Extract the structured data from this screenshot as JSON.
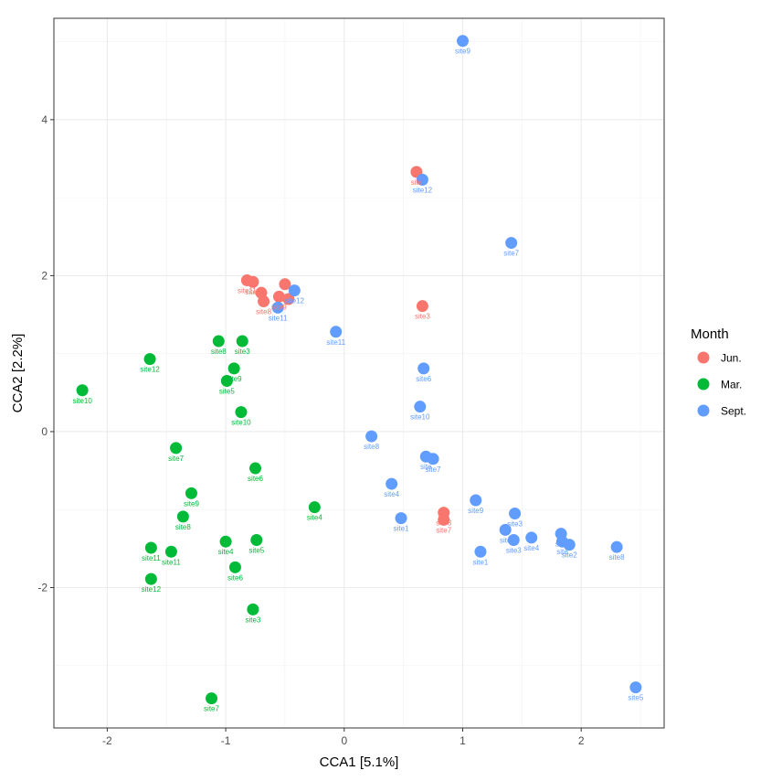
{
  "chart_data": {
    "type": "scatter",
    "xlabel": "CCA1   [5.1%]",
    "ylabel": "CCA2   [2.2%]",
    "xlim": [
      -2.45,
      2.7
    ],
    "ylim": [
      -3.8,
      5.3
    ],
    "x_ticks": [
      -2,
      -1,
      0,
      1,
      2
    ],
    "y_ticks": [
      -2,
      0,
      2,
      4
    ],
    "grid": true,
    "legend": {
      "title": "Month",
      "placement": "right",
      "entries": [
        {
          "name": "Jun.",
          "color": "#F8766D"
        },
        {
          "name": "Mar.",
          "color": "#00BA38"
        },
        {
          "name": "Sept.",
          "color": "#619CFF"
        }
      ]
    },
    "series": [
      {
        "name": "Jun.",
        "color": "#F8766D",
        "points": [
          {
            "x": 0.61,
            "y": 3.33,
            "label": "site"
          },
          {
            "x": 0.66,
            "y": 1.61,
            "label": "site3"
          },
          {
            "x": -0.82,
            "y": 1.94,
            "label": "site11"
          },
          {
            "x": -0.77,
            "y": 1.92,
            "label": "site1"
          },
          {
            "x": -0.7,
            "y": 1.78,
            "label": ""
          },
          {
            "x": -0.68,
            "y": 1.67,
            "label": "site8"
          },
          {
            "x": -0.5,
            "y": 1.89,
            "label": ""
          },
          {
            "x": -0.55,
            "y": 1.73,
            "label": "site9"
          },
          {
            "x": -0.47,
            "y": 1.7,
            "label": ""
          },
          {
            "x": 0.84,
            "y": -1.04,
            "label": "site8"
          },
          {
            "x": 0.84,
            "y": -1.13,
            "label": "site7"
          }
        ]
      },
      {
        "name": "Mar.",
        "color": "#00BA38",
        "points": [
          {
            "x": -2.21,
            "y": 0.53,
            "label": "site10"
          },
          {
            "x": -1.64,
            "y": 0.93,
            "label": "site12"
          },
          {
            "x": -1.06,
            "y": 1.16,
            "label": "site8"
          },
          {
            "x": -0.86,
            "y": 1.16,
            "label": "site3"
          },
          {
            "x": -0.93,
            "y": 0.81,
            "label": "site9"
          },
          {
            "x": -0.99,
            "y": 0.65,
            "label": "site5"
          },
          {
            "x": -0.87,
            "y": 0.25,
            "label": "site10"
          },
          {
            "x": -1.42,
            "y": -0.21,
            "label": "site7"
          },
          {
            "x": -0.75,
            "y": -0.47,
            "label": "site6"
          },
          {
            "x": -1.29,
            "y": -0.79,
            "label": "site9"
          },
          {
            "x": -1.36,
            "y": -1.09,
            "label": "site8"
          },
          {
            "x": -0.25,
            "y": -0.97,
            "label": "site4"
          },
          {
            "x": -1.63,
            "y": -1.49,
            "label": "site11"
          },
          {
            "x": -1.46,
            "y": -1.54,
            "label": "site11"
          },
          {
            "x": -1.0,
            "y": -1.41,
            "label": "site4"
          },
          {
            "x": -0.74,
            "y": -1.39,
            "label": "site5"
          },
          {
            "x": -0.92,
            "y": -1.74,
            "label": "site6"
          },
          {
            "x": -1.63,
            "y": -1.89,
            "label": "site12"
          },
          {
            "x": -0.77,
            "y": -2.28,
            "label": "site3"
          },
          {
            "x": -1.12,
            "y": -3.42,
            "label": "site7"
          }
        ]
      },
      {
        "name": "Sept.",
        "color": "#619CFF",
        "points": [
          {
            "x": 1.0,
            "y": 5.01,
            "label": "site9"
          },
          {
            "x": 0.66,
            "y": 3.23,
            "label": "site12"
          },
          {
            "x": 1.41,
            "y": 2.42,
            "label": "site7"
          },
          {
            "x": -0.42,
            "y": 1.81,
            "label": "site12"
          },
          {
            "x": -0.56,
            "y": 1.59,
            "label": "site11"
          },
          {
            "x": -0.07,
            "y": 1.28,
            "label": "site11"
          },
          {
            "x": 0.67,
            "y": 0.81,
            "label": "site6"
          },
          {
            "x": 0.64,
            "y": 0.32,
            "label": "site10"
          },
          {
            "x": 0.23,
            "y": -0.06,
            "label": "site8"
          },
          {
            "x": 0.69,
            "y": -0.32,
            "label": "site"
          },
          {
            "x": 0.75,
            "y": -0.35,
            "label": "site7"
          },
          {
            "x": 0.4,
            "y": -0.67,
            "label": "site4"
          },
          {
            "x": 0.48,
            "y": -1.11,
            "label": "site1"
          },
          {
            "x": 1.11,
            "y": -0.88,
            "label": "site9"
          },
          {
            "x": 1.44,
            "y": -1.05,
            "label": "site3"
          },
          {
            "x": 1.36,
            "y": -1.26,
            "label": "site"
          },
          {
            "x": 1.43,
            "y": -1.39,
            "label": "site3"
          },
          {
            "x": 1.58,
            "y": -1.36,
            "label": "site4"
          },
          {
            "x": 1.15,
            "y": -1.54,
            "label": "site1"
          },
          {
            "x": 1.83,
            "y": -1.31,
            "label": "site"
          },
          {
            "x": 1.84,
            "y": -1.41,
            "label": "site"
          },
          {
            "x": 1.9,
            "y": -1.45,
            "label": "site2"
          },
          {
            "x": 2.3,
            "y": -1.48,
            "label": "site8"
          },
          {
            "x": 2.46,
            "y": -3.28,
            "label": "site5"
          }
        ]
      }
    ]
  }
}
